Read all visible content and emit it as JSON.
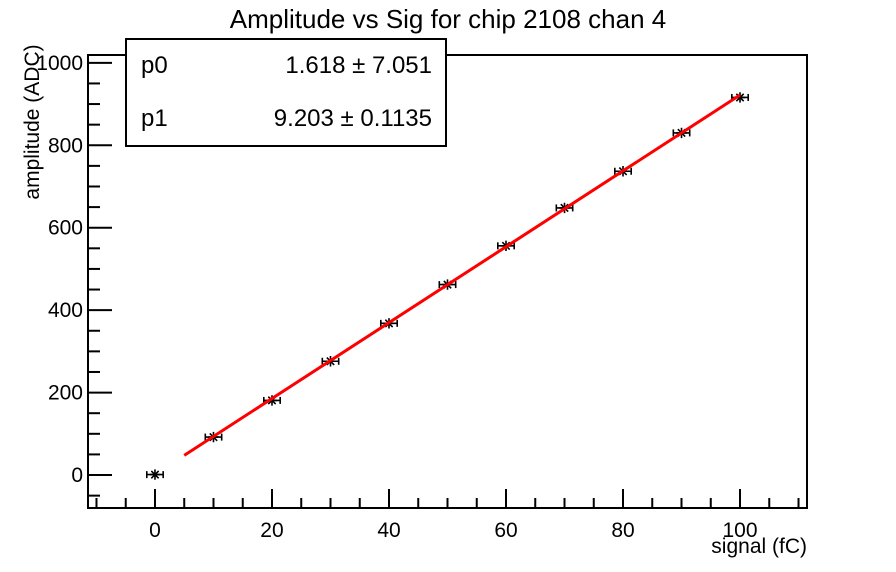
{
  "chart_data": {
    "type": "scatter",
    "title": "Amplitude vs Sig for chip 2108 chan 4",
    "xlabel": "signal (fC)",
    "ylabel": "amplitude (ADC)",
    "xlim": [
      -11.45,
      111.45
    ],
    "ylim": [
      -80,
      1019
    ],
    "x_major_ticks": [
      0,
      20,
      40,
      60,
      80,
      100
    ],
    "x_minor_step": 5,
    "y_major_ticks": [
      0,
      200,
      400,
      600,
      800,
      1000
    ],
    "y_minor_step": 50,
    "grid": false,
    "legend": "none",
    "points": {
      "x": [
        0,
        10,
        20,
        30,
        40,
        50,
        60,
        70,
        80,
        90,
        100
      ],
      "y": [
        1,
        92,
        181,
        276,
        368,
        462,
        556,
        648,
        737,
        830,
        916
      ],
      "xerr": 1.4,
      "marker": "asterisk"
    },
    "fit": {
      "type": "linear",
      "p0": 1.618,
      "p0_err": 7.051,
      "p1": 9.203,
      "p1_err": 0.1135,
      "x_start": 5,
      "x_end": 100
    },
    "colors": {
      "axis": "#000000",
      "marker": "#000000",
      "fit_line": "#ff0000",
      "background": "#ffffff"
    }
  },
  "stats": {
    "rows": [
      {
        "name": "p0",
        "value": "1.618 ± 7.051"
      },
      {
        "name": "p1",
        "value": "9.203 ± 0.1135"
      }
    ]
  }
}
